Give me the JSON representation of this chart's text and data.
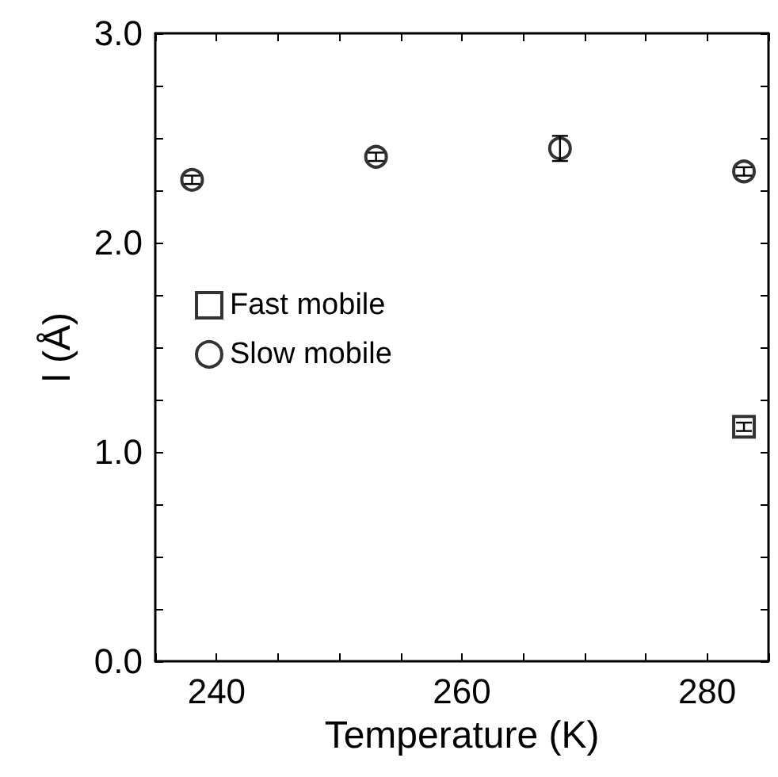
{
  "chart_data": {
    "type": "scatter",
    "xlabel": "Temperature (K)",
    "ylabel": "l (Å)",
    "xlim": [
      235,
      285
    ],
    "xticks": [
      240,
      260,
      280
    ],
    "ylim": [
      0,
      3
    ],
    "yticks": [
      {
        "value": 0,
        "label": "0.0"
      },
      {
        "value": 1,
        "label": "1.0"
      },
      {
        "value": 2,
        "label": "2.0"
      },
      {
        "value": 3,
        "label": "3.0"
      }
    ],
    "series": [
      {
        "name": "Fast mobile",
        "color": "#000000",
        "marker": "square",
        "x": [
          283
        ],
        "values": [
          1.12
        ],
        "errors": [
          0.02
        ]
      },
      {
        "name": "Slow mobile",
        "color": "#000000",
        "marker": "circle",
        "x": [
          238,
          253,
          268,
          283
        ],
        "values": [
          2.3,
          2.41,
          2.45,
          2.34
        ],
        "errors": [
          0.02,
          0.02,
          0.06,
          0.02
        ]
      }
    ],
    "legend": "left",
    "grid": false
  }
}
